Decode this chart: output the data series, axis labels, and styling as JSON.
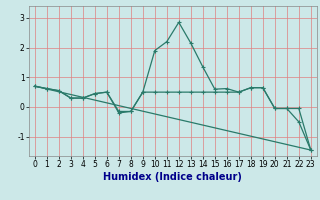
{
  "title": "",
  "xlabel": "Humidex (Indice chaleur)",
  "bg_color": "#cce8e8",
  "line_color": "#2a7a6a",
  "grid_color_v": "#e08080",
  "grid_color_h": "#e08080",
  "xlim": [
    -0.5,
    23.5
  ],
  "ylim": [
    -1.65,
    3.4
  ],
  "yticks": [
    -1,
    0,
    1,
    2,
    3
  ],
  "xticks": [
    0,
    1,
    2,
    3,
    4,
    5,
    6,
    7,
    8,
    9,
    10,
    11,
    12,
    13,
    14,
    15,
    16,
    17,
    18,
    19,
    20,
    21,
    22,
    23
  ],
  "series1_x": [
    0,
    1,
    2,
    3,
    4,
    5,
    6,
    7,
    8,
    9,
    10,
    11,
    12,
    13,
    14,
    15,
    16,
    17,
    18,
    19,
    20,
    21,
    22,
    23
  ],
  "series1_y": [
    0.7,
    0.62,
    0.55,
    0.3,
    0.3,
    0.45,
    0.5,
    -0.15,
    -0.15,
    0.5,
    1.9,
    2.2,
    2.85,
    2.15,
    1.35,
    0.6,
    0.62,
    0.5,
    0.65,
    0.65,
    -0.05,
    -0.05,
    -0.5,
    -1.45
  ],
  "series2_x": [
    0,
    1,
    2,
    3,
    4,
    5,
    6,
    7,
    8,
    9,
    10,
    11,
    12,
    13,
    14,
    15,
    16,
    17,
    18,
    19,
    20,
    21,
    22,
    23
  ],
  "series2_y": [
    0.7,
    0.62,
    0.55,
    0.3,
    0.3,
    0.45,
    0.5,
    -0.2,
    -0.15,
    0.5,
    0.5,
    0.5,
    0.5,
    0.5,
    0.5,
    0.5,
    0.5,
    0.5,
    0.65,
    0.65,
    -0.05,
    -0.05,
    -0.05,
    -1.45
  ],
  "series3_x": [
    0,
    23
  ],
  "series3_y": [
    0.7,
    -1.45
  ],
  "xlabel_color": "#00008b",
  "xlabel_fontsize": 7,
  "tick_labelsize": 5.5,
  "linewidth": 0.9,
  "markersize": 2.5
}
